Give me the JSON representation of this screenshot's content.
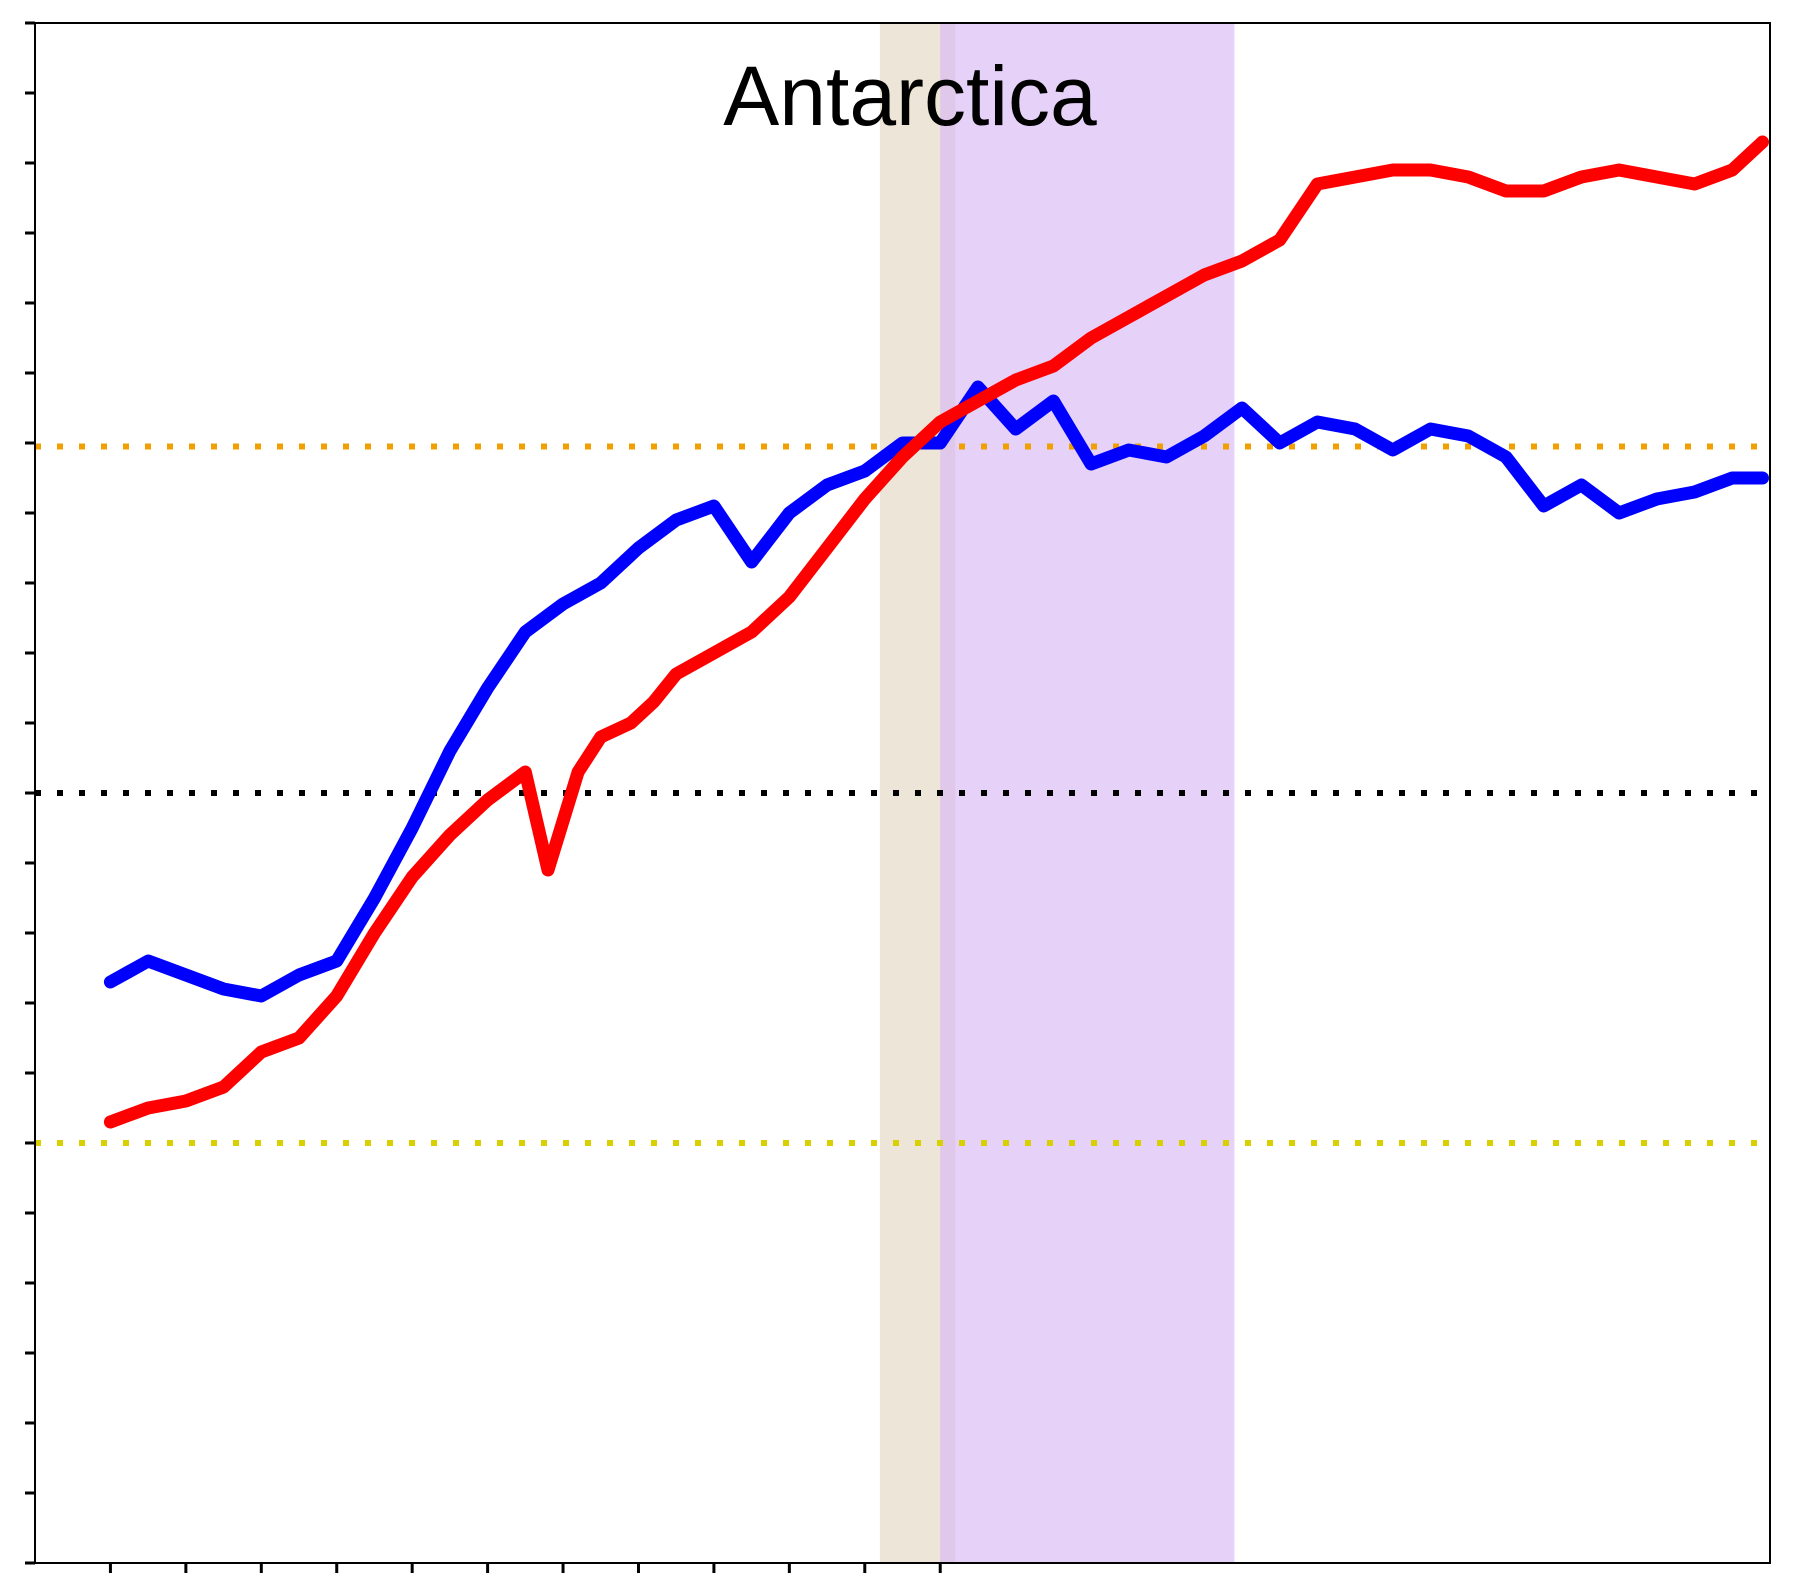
{
  "chart_data": {
    "type": "line",
    "title": "Antarctica",
    "xlabel": "",
    "ylabel": "",
    "xlim": [
      -1,
      22
    ],
    "ylim": [
      0,
      22
    ],
    "x_ticks": [
      0,
      1,
      2,
      3,
      4,
      5,
      6,
      7,
      8,
      9,
      10,
      11
    ],
    "y_ticks": [
      0,
      1,
      2,
      3,
      4,
      5,
      6,
      7,
      8,
      9,
      10,
      11,
      12,
      13,
      14,
      15,
      16,
      17,
      18,
      19,
      20,
      21,
      22
    ],
    "grid": false,
    "legend": "none",
    "shaded_regions": [
      {
        "x0": 10.2,
        "x1": 11.2,
        "color": "#e6dcc8",
        "opacity": 0.7
      },
      {
        "x0": 11.0,
        "x1": 14.9,
        "color": "#d8b8f4",
        "opacity": 0.65
      }
    ],
    "reference_lines": [
      {
        "y": 15.95,
        "color": "#f0a000"
      },
      {
        "y": 11.0,
        "color": "#000000"
      },
      {
        "y": 6.0,
        "color": "#d8d000"
      }
    ],
    "series": [
      {
        "name": "",
        "color": "#0000ff",
        "x": [
          0.0,
          0.5,
          1.0,
          1.5,
          2.0,
          2.5,
          3.0,
          3.5,
          4.0,
          4.5,
          5.0,
          5.5,
          6.0,
          6.5,
          7.0,
          7.5,
          8.0,
          8.5,
          9.0,
          9.5,
          10.0,
          10.5,
          11.0,
          11.5,
          12.0,
          12.5,
          13.0,
          13.5,
          14.0,
          14.5,
          15.0,
          15.5,
          16.0,
          16.5,
          17.0,
          17.5,
          18.0,
          18.5,
          19.0,
          19.5,
          20.0,
          20.5,
          21.0,
          21.5,
          21.9
        ],
        "y": [
          8.3,
          8.6,
          8.4,
          8.2,
          8.1,
          8.4,
          8.6,
          9.5,
          10.5,
          11.6,
          12.5,
          13.3,
          13.7,
          14.0,
          14.5,
          14.9,
          15.1,
          14.3,
          15.0,
          15.4,
          15.6,
          16.0,
          16.0,
          16.8,
          16.2,
          16.6,
          15.7,
          15.9,
          15.8,
          16.1,
          16.5,
          16.0,
          16.3,
          16.2,
          15.9,
          16.2,
          16.1,
          15.8,
          15.1,
          15.4,
          15.0,
          15.2,
          15.3,
          15.5,
          15.5
        ]
      },
      {
        "name": "",
        "color": "#ff0000",
        "x": [
          0.0,
          0.5,
          1.0,
          1.5,
          2.0,
          2.5,
          3.0,
          3.5,
          4.0,
          4.5,
          5.0,
          5.5,
          5.8,
          6.2,
          6.5,
          6.9,
          7.2,
          7.5,
          8.0,
          8.5,
          9.0,
          9.5,
          10.0,
          10.5,
          11.0,
          11.5,
          12.0,
          12.5,
          13.0,
          13.5,
          14.0,
          14.5,
          15.0,
          15.5,
          16.0,
          16.5,
          17.0,
          17.5,
          18.0,
          18.5,
          19.0,
          19.5,
          20.0,
          20.5,
          21.0,
          21.5,
          21.9
        ],
        "y": [
          6.3,
          6.5,
          6.6,
          6.8,
          7.3,
          7.5,
          8.1,
          9.0,
          9.8,
          10.4,
          10.9,
          11.3,
          9.9,
          11.3,
          11.8,
          12.0,
          12.3,
          12.7,
          13.0,
          13.3,
          13.8,
          14.5,
          15.2,
          15.8,
          16.3,
          16.6,
          16.9,
          17.1,
          17.5,
          17.8,
          18.1,
          18.4,
          18.6,
          18.9,
          19.7,
          19.8,
          19.9,
          19.9,
          19.8,
          19.6,
          19.6,
          19.8,
          19.9,
          19.8,
          19.7,
          19.9,
          20.3
        ]
      }
    ]
  }
}
